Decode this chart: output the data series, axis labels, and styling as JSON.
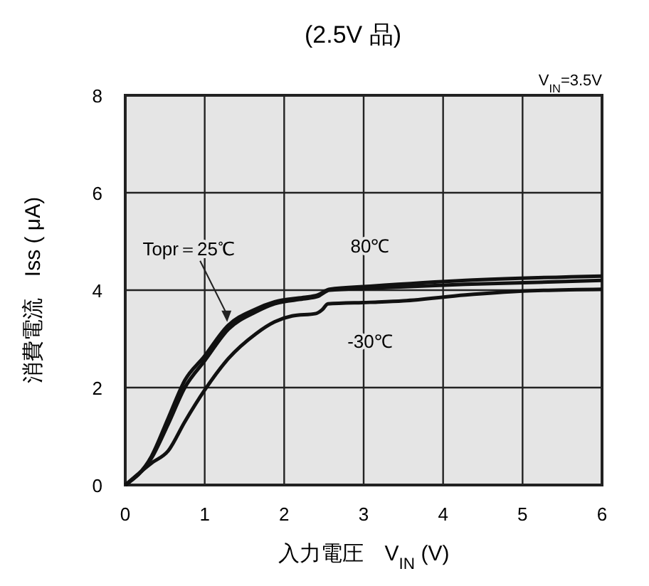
{
  "chart_data": {
    "type": "line",
    "title": "(2.5V 品)",
    "xlabel": "入力電圧　V$_{IN}$ (V)",
    "ylabel": "消費電流　Iss ( μA)",
    "xlim": [
      0,
      6
    ],
    "ylim": [
      0,
      8
    ],
    "xticks": [
      0,
      1,
      2,
      3,
      4,
      5,
      6
    ],
    "yticks": [
      0,
      2,
      4,
      6,
      8
    ],
    "grid": true,
    "marker": "none",
    "line_style": "solid",
    "annotations": [
      "V$_{IN}$=3.5V"
    ],
    "series": [
      {
        "name": "80℃",
        "color": "#111111",
        "x": [
          0,
          0.33,
          0.54,
          0.75,
          0.99,
          1.29,
          1.64,
          1.88,
          2.24,
          2.42,
          2.57,
          3.08,
          4.28,
          6
        ],
        "values": [
          0,
          0.59,
          1.37,
          2.15,
          2.63,
          3.27,
          3.61,
          3.76,
          3.85,
          3.9,
          4.02,
          4.08,
          4.2,
          4.29
        ]
      },
      {
        "name": "Topr＝25℃",
        "color": "#111111",
        "x": [
          0,
          0.33,
          0.54,
          0.75,
          1.0,
          1.3,
          1.64,
          1.88,
          2.24,
          2.42,
          2.57,
          3.08,
          4.28,
          6
        ],
        "values": [
          0,
          0.55,
          1.25,
          2.0,
          2.55,
          3.2,
          3.55,
          3.72,
          3.82,
          3.87,
          4.0,
          4.04,
          4.12,
          4.2
        ]
      },
      {
        "name": "-30℃",
        "color": "#111111",
        "x": [
          0,
          0.33,
          0.54,
          0.75,
          1.0,
          1.3,
          1.64,
          1.88,
          2.1,
          2.4,
          2.48,
          2.55,
          3.08,
          3.5,
          4.28,
          5,
          6
        ],
        "values": [
          0,
          0.45,
          0.7,
          1.3,
          1.95,
          2.6,
          3.1,
          3.35,
          3.47,
          3.52,
          3.6,
          3.72,
          3.75,
          3.78,
          3.9,
          3.98,
          4.02
        ]
      }
    ]
  }
}
